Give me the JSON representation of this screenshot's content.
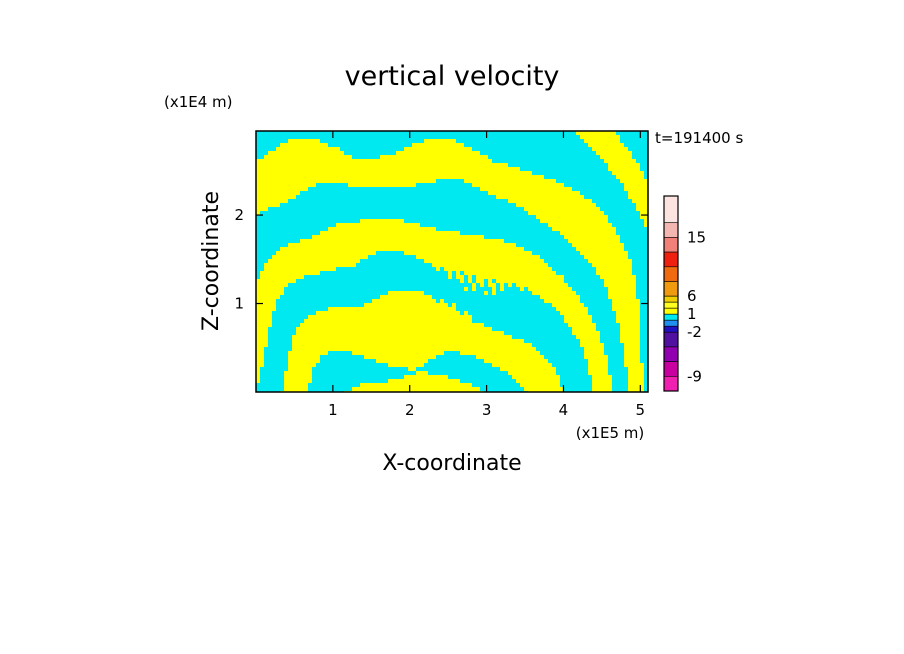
{
  "chart_data": {
    "type": "heatmap",
    "title": "vertical velocity",
    "time_label": "t=191400 s",
    "xlabel": "X-coordinate",
    "ylabel": "Z-coordinate",
    "x_unit": "(x1E5 m)",
    "y_unit": "(x1E4 m)",
    "xlim": [
      0,
      5.1
    ],
    "ylim": [
      0,
      2.95
    ],
    "x_ticks": [
      "1",
      "2",
      "3",
      "4",
      "5"
    ],
    "y_ticks": [
      "1",
      "2"
    ],
    "colorbar": {
      "tick_labels": [
        "15",
        "6",
        "1",
        "-2",
        "-9"
      ],
      "bands": [
        {
          "upper": "top",
          "color": "#fde4e0"
        },
        {
          "upper": "18",
          "color": "#f4b6b0"
        },
        {
          "upper": "15",
          "color": "#f08078"
        },
        {
          "upper": "12",
          "color": "#f02010"
        },
        {
          "upper": "9",
          "color": "#f06a10"
        },
        {
          "upper": "6",
          "color": "#f09a10"
        },
        {
          "upper": "3",
          "color": "#f0d000"
        },
        {
          "upper": "2",
          "color": "#ffff20"
        },
        {
          "upper": "1",
          "color": "#ffff00"
        },
        {
          "upper": "0",
          "color": "#00e8f0"
        },
        {
          "upper": "-1",
          "color": "#2090f0"
        },
        {
          "upper": "-2",
          "color": "#2010c0"
        },
        {
          "upper": "-3",
          "color": "#5010a0"
        },
        {
          "upper": "-6",
          "color": "#9000b0"
        },
        {
          "upper": "-9",
          "color": "#c800a0"
        },
        {
          "upper": "-12",
          "color": "#f020b0"
        }
      ]
    },
    "field_colors": {
      "positive": "#ffff00",
      "negative": "#00e8f0"
    }
  }
}
